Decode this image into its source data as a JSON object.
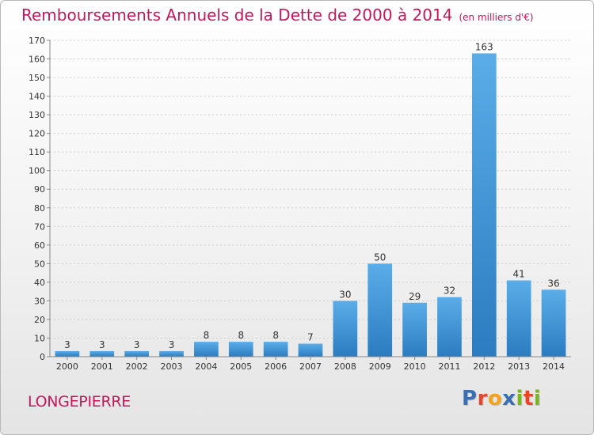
{
  "title": "Remboursements Annuels de la Dette de 2000 à 2014",
  "unit_note": "(en milliers d'€)",
  "commune": "LONGEPIERRE",
  "logo": {
    "text": "Proxiti",
    "letter_colors": [
      "#3a6fb3",
      "#e8452c",
      "#f3a21b",
      "#3a6fb3",
      "#7ab51d",
      "#e8452c",
      "#7ab51d"
    ]
  },
  "colors": {
    "title": "#c2185b",
    "bar_light": "#5aade8",
    "bar_dark": "#2b7cc0",
    "axis": "#888888",
    "grid": "#cccccc"
  },
  "chart_data": {
    "type": "bar",
    "categories": [
      "2000",
      "2001",
      "2002",
      "2003",
      "2004",
      "2005",
      "2006",
      "2007",
      "2008",
      "2009",
      "2010",
      "2011",
      "2012",
      "2013",
      "2014"
    ],
    "values": [
      3,
      3,
      3,
      3,
      8,
      8,
      8,
      7,
      30,
      50,
      29,
      32,
      163,
      41,
      36
    ],
    "title": "Remboursements Annuels de la Dette de 2000 à 2014",
    "ylim": [
      0,
      170
    ],
    "yticks": [
      0,
      10,
      20,
      30,
      40,
      50,
      60,
      70,
      80,
      90,
      100,
      110,
      120,
      130,
      140,
      150,
      160,
      170
    ],
    "grid": true
  }
}
